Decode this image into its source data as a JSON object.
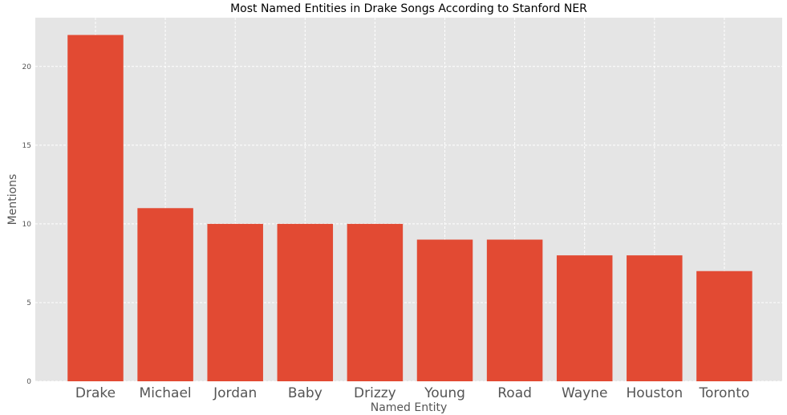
{
  "chart_data": {
    "type": "bar",
    "title": "Most Named Entities in Drake Songs According to Stanford NER",
    "xlabel": "Named Entity",
    "ylabel": "Mentions",
    "categories": [
      "Drake",
      "Michael",
      "Jordan",
      "Baby",
      "Drizzy",
      "Young",
      "Road",
      "Wayne",
      "Houston",
      "Toronto"
    ],
    "values": [
      22,
      11,
      10,
      10,
      10,
      9,
      9,
      8,
      8,
      7
    ],
    "ylim": [
      0,
      23.1
    ],
    "yticks": [
      0,
      5,
      10,
      15,
      20
    ],
    "grid": true,
    "colors": {
      "bar": "#e24a33",
      "plot_background": "#e5e5e5",
      "grid": "#ffffff"
    }
  }
}
